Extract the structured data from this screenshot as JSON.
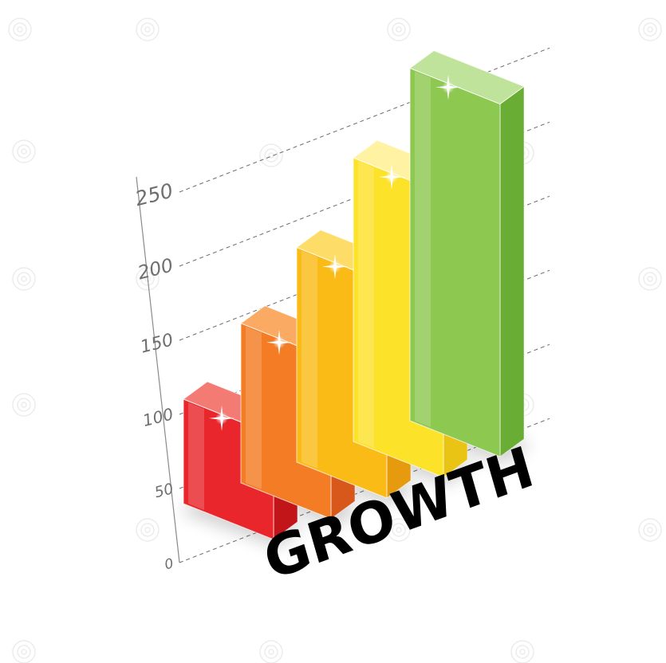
{
  "chart_data": {
    "type": "bar",
    "title": "",
    "xlabel": "",
    "ylabel": "",
    "categories": [
      "",
      "",
      "",
      "",
      ""
    ],
    "values": [
      70,
      110,
      150,
      200,
      250
    ],
    "ylim": [
      0,
      250
    ],
    "yticks": [
      "0",
      "50",
      "100",
      "150",
      "200",
      "250"
    ],
    "grid": true,
    "bar_colors": [
      {
        "front": "#e8262b",
        "side": "#c21519",
        "top": "#f47b74"
      },
      {
        "front": "#f37c24",
        "side": "#d8571a",
        "top": "#fbaa63"
      },
      {
        "front": "#fbbb16",
        "side": "#e69a0d",
        "top": "#fddc68"
      },
      {
        "front": "#fde22a",
        "side": "#e9c414",
        "top": "#fff3a3"
      },
      {
        "front": "#8dc850",
        "side": "#6aad35",
        "top": "#bfe39a"
      }
    ]
  },
  "overlay": {
    "label": "GROWTH"
  }
}
